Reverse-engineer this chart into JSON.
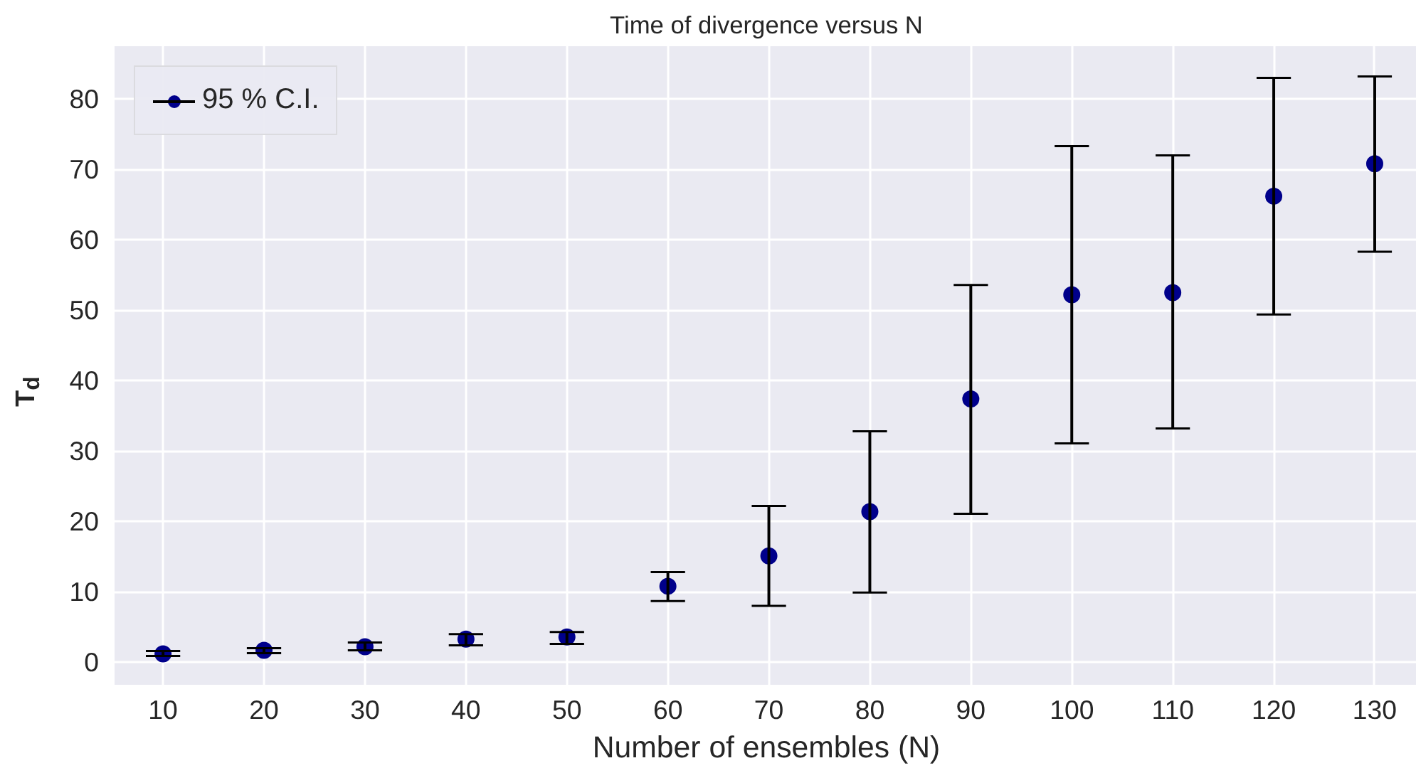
{
  "chart_data": {
    "type": "scatter",
    "title": "Time of divergence versus N",
    "xlabel": "Number of ensembles (N)",
    "ylabel": "T$_{d}$",
    "x": [
      10,
      20,
      30,
      40,
      50,
      60,
      70,
      80,
      90,
      100,
      110,
      120,
      130
    ],
    "series": [
      {
        "name": "95 % C.I.",
        "color": "#00008b",
        "values": [
          1.2,
          1.7,
          2.2,
          3.3,
          3.6,
          10.8,
          15.1,
          21.4,
          37.4,
          52.2,
          52.5,
          66.2,
          70.8
        ],
        "errors": [
          [
            0.9,
            1.6
          ],
          [
            1.3,
            2.0
          ],
          [
            1.7,
            2.8
          ],
          [
            2.4,
            4.0
          ],
          [
            2.6,
            4.3
          ],
          [
            8.7,
            12.8
          ],
          [
            8.0,
            22.2
          ],
          [
            9.9,
            32.8
          ],
          [
            21.1,
            53.6
          ],
          [
            31.1,
            73.3
          ],
          [
            33.2,
            72.0
          ],
          [
            49.4,
            83.0
          ],
          [
            58.3,
            83.2
          ]
        ]
      }
    ],
    "xlim": [
      5.2,
      134.3
    ],
    "ylim": [
      -3.2,
      87.5
    ],
    "xticks": [
      10,
      20,
      30,
      40,
      50,
      60,
      70,
      80,
      90,
      100,
      110,
      120,
      130
    ],
    "yticks": [
      0,
      10,
      20,
      30,
      40,
      50,
      60,
      70,
      80
    ],
    "grid": true,
    "legend": "top left",
    "marker": "circle"
  }
}
